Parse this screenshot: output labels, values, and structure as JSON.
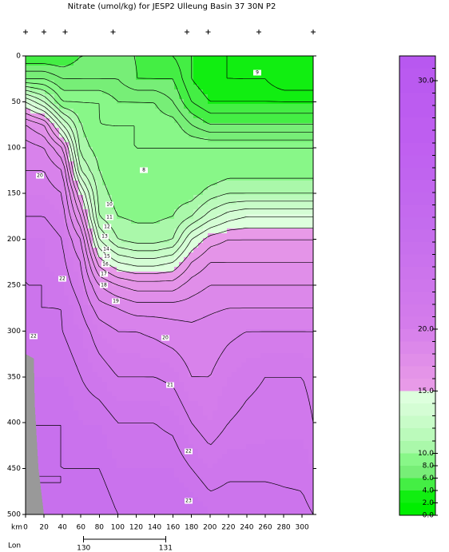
{
  "chart_data": {
    "type": "contour",
    "title": "Nitrate (umol/kg) for JESP2 Ulleung Basin 37 30N P2",
    "x_label": "km",
    "lon_label": "Lon",
    "lon_ticks": [
      {
        "value": 130,
        "label": "130",
        "km": 63
      },
      {
        "value": 131,
        "label": "131",
        "km": 152
      }
    ],
    "xlim": [
      0,
      312
    ],
    "xticks": [
      0,
      20,
      40,
      60,
      80,
      100,
      120,
      140,
      160,
      180,
      200,
      220,
      240,
      260,
      280,
      300
    ],
    "ylim": [
      0,
      500
    ],
    "yticks": [
      0,
      50,
      100,
      150,
      200,
      250,
      300,
      350,
      400,
      450,
      500
    ],
    "stations_km": [
      0,
      20,
      43,
      95,
      175,
      198,
      253,
      312
    ],
    "x": [
      0,
      20,
      40,
      60,
      80,
      100,
      120,
      140,
      160,
      180,
      200,
      220,
      240,
      260,
      280,
      300,
      312
    ],
    "depths": [
      0,
      25,
      50,
      75,
      100,
      125,
      150,
      175,
      200,
      225,
      250,
      275,
      300,
      350,
      400,
      450,
      500
    ],
    "z": [
      [
        5,
        5,
        5,
        6,
        6,
        6,
        6,
        5,
        5,
        4,
        3,
        3,
        2,
        2,
        2,
        2,
        2
      ],
      [
        8,
        8,
        7,
        7,
        7,
        7,
        6,
        6,
        6,
        4,
        3,
        3,
        3,
        3,
        2,
        2,
        2
      ],
      [
        14,
        12,
        9,
        9,
        9,
        8,
        8,
        8,
        7,
        5,
        4,
        4,
        4,
        4,
        4,
        4,
        4
      ],
      [
        18,
        17,
        13,
        10,
        9,
        9,
        9,
        8.5,
        8.5,
        7,
        6,
        6,
        6,
        6,
        6,
        6,
        6
      ],
      [
        19.5,
        19,
        17,
        10.5,
        9.5,
        9,
        9,
        9,
        9,
        9,
        9,
        9,
        9,
        9,
        9,
        9,
        9
      ],
      [
        20,
        20,
        19,
        12,
        10,
        9,
        9,
        9,
        9,
        9,
        9,
        9.5,
        9.5,
        9.5,
        9.5,
        9.5,
        9.5
      ],
      [
        20.5,
        20.5,
        20,
        15,
        10.5,
        9.5,
        9.5,
        9.5,
        9.5,
        9.5,
        10.5,
        11,
        11,
        11,
        11,
        11,
        11
      ],
      [
        21,
        21,
        20.5,
        17,
        11,
        10,
        9.8,
        9.8,
        10,
        11,
        12.5,
        13.5,
        14,
        14,
        14,
        14,
        14
      ],
      [
        21.5,
        21.5,
        21,
        19,
        13,
        11,
        10.5,
        10.5,
        11,
        14,
        15.5,
        16,
        16,
        16,
        16,
        16,
        16
      ],
      [
        22,
        21.5,
        21.2,
        20,
        15.5,
        14,
        13.5,
        13.5,
        14,
        16,
        17,
        17,
        17,
        17,
        17,
        17,
        17
      ],
      [
        22,
        22,
        21.5,
        20.5,
        18,
        17,
        16.5,
        16.5,
        16.5,
        17.5,
        18,
        18,
        18,
        18,
        18,
        18,
        18
      ],
      [
        22,
        22,
        22,
        21,
        19.5,
        19,
        18.5,
        18.5,
        18.5,
        18.5,
        18.8,
        19,
        19,
        19,
        19,
        19,
        19
      ],
      [
        22,
        22.5,
        22,
        21.5,
        20.5,
        20,
        20,
        19.8,
        19.5,
        19.3,
        19.5,
        19.8,
        20,
        20,
        20,
        20,
        20
      ],
      [
        22.5,
        22.5,
        22.5,
        22,
        21.5,
        21,
        21,
        21,
        20.8,
        20,
        20,
        20.5,
        20.8,
        21,
        21,
        21,
        20.8
      ],
      [
        23,
        23,
        23,
        22.5,
        22.5,
        22,
        22,
        22,
        21.8,
        21,
        20.5,
        21,
        21.2,
        21.3,
        21.3,
        21.3,
        21
      ],
      [
        23,
        23,
        23,
        23,
        23,
        22.5,
        22.5,
        22.5,
        22.5,
        22,
        21.5,
        21.8,
        21.8,
        21.8,
        21.8,
        21.8,
        21.5
      ],
      [
        23,
        23,
        23,
        23.5,
        23.5,
        23,
        23,
        23,
        23,
        23,
        22.5,
        22.5,
        22.5,
        22.5,
        22.3,
        22.2,
        22
      ]
    ],
    "bottom_km": [
      0,
      9,
      10,
      14,
      20,
      0
    ],
    "bottom_depth": [
      325,
      330,
      380,
      450,
      500,
      500
    ],
    "bottom_color": "#999999",
    "levels": [
      0,
      2,
      4,
      6,
      8,
      10,
      11,
      12,
      13,
      14,
      15,
      16,
      17,
      18,
      19,
      20,
      20.5,
      21,
      21.5,
      22,
      22.5,
      23,
      23.5,
      24,
      24.5,
      25,
      25.5,
      26,
      26.5,
      27,
      27.5,
      28,
      28.5,
      29,
      29.5,
      30,
      30.5,
      31
    ],
    "colors": [
      "#00ee00",
      "#11ee11",
      "#44ee44",
      "#77ee77",
      "#88f788",
      "#aaf8aa",
      "#bbfabb",
      "#c8fcc8",
      "#d4fdd4",
      "#ddffdd",
      "#e89ae8",
      "#e494e8",
      "#e08ee9",
      "#dc88ea",
      "#d882eb",
      "#d47ceb",
      "#d27aeb",
      "#d078ec",
      "#ce76ec",
      "#cc74ec",
      "#ca72ed",
      "#c870ed",
      "#c66eed",
      "#c46cee",
      "#c46aee",
      "#c268ee",
      "#c266ef",
      "#c064ef",
      "#c062f0",
      "#c060f0",
      "#be5ef0",
      "#be5ef0",
      "#bc5cf0",
      "#bc5cf0",
      "#ba5af0",
      "#ba5af0",
      "#b858f0"
    ],
    "colorbar_ticks": [
      {
        "value": 0,
        "label": "0.0"
      },
      {
        "value": 2,
        "label": "2.0"
      },
      {
        "value": 4,
        "label": "4.0"
      },
      {
        "value": 6,
        "label": "6.0"
      },
      {
        "value": 8,
        "label": "8.0"
      },
      {
        "value": 10,
        "label": "10.0"
      },
      {
        "value": 15,
        "label": "15.0"
      },
      {
        "value": 20,
        "label": "20.0"
      },
      {
        "value": 30,
        "label": "30.0"
      }
    ],
    "contour_levels": [
      1,
      2,
      3,
      4,
      5,
      6,
      7,
      8,
      9,
      10,
      11,
      12,
      13,
      14,
      15,
      16,
      17,
      18,
      19,
      20,
      21,
      22,
      23
    ],
    "contour_labels": [
      9,
      8,
      10,
      11,
      12,
      13,
      14,
      15,
      16,
      17,
      18,
      19,
      20,
      21,
      22,
      23,
      20,
      22,
      22
    ]
  }
}
